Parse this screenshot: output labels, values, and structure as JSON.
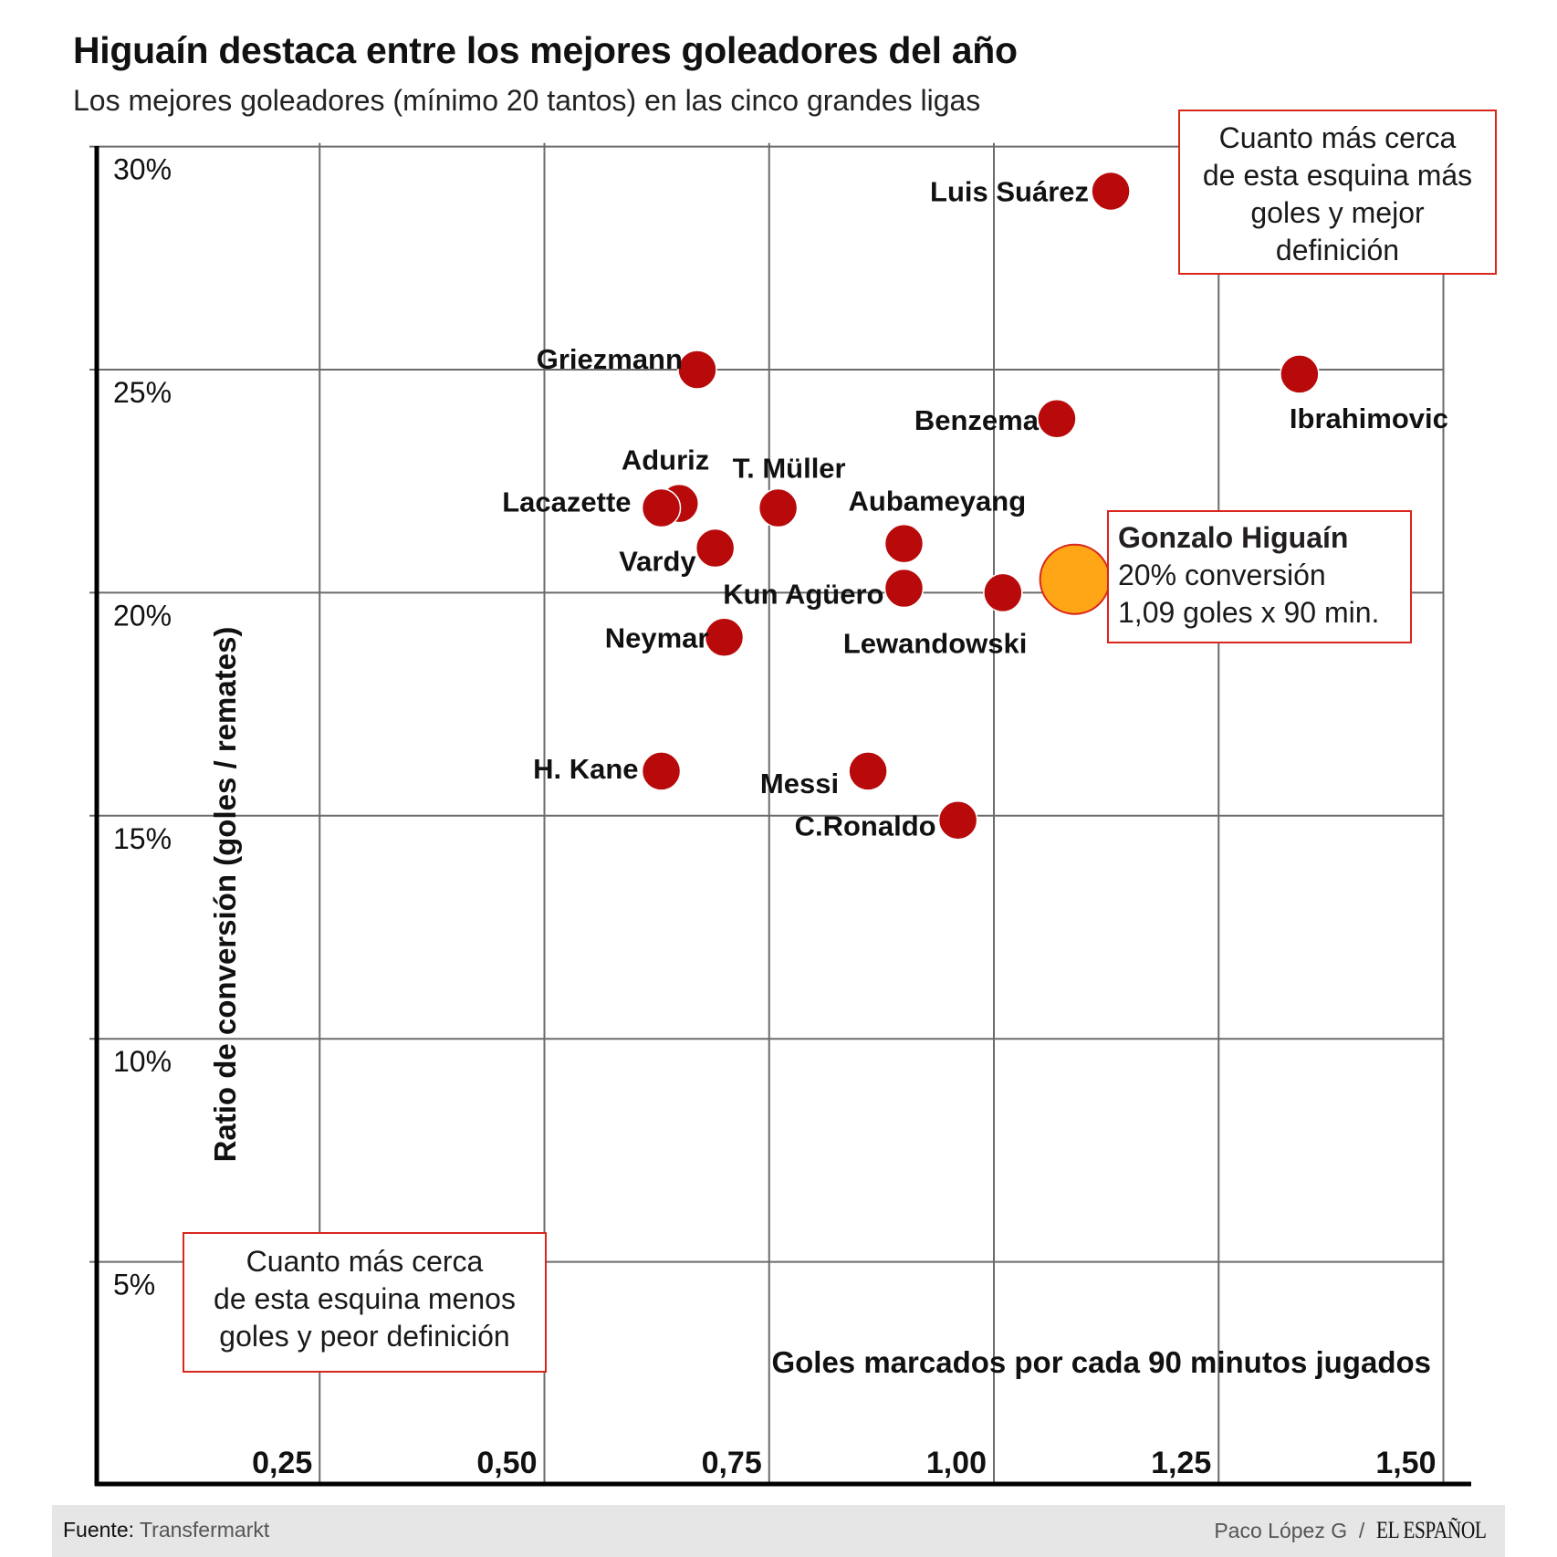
{
  "header": {
    "title": "Higuaín destaca entre los mejores goleadores del año",
    "subtitle": "Los mejores goleadores (mínimo 20 tantos) en las cinco grandes ligas"
  },
  "chart_data": {
    "type": "scatter",
    "title": "Higuaín destaca entre los mejores goleadores del año",
    "subtitle": "Los mejores goleadores (mínimo 20 tantos) en las cinco grandes ligas",
    "xlabel": "Goles marcados por cada 90 minutos jugados",
    "ylabel": "Ratio de conversión (goles  / remates)",
    "xlim": [
      0,
      1.5
    ],
    "ylim": [
      0,
      30
    ],
    "grid": true,
    "xticks": [
      0.25,
      0.5,
      0.75,
      1.0,
      1.25,
      1.5
    ],
    "xtick_labels": [
      "0,25",
      "0,50",
      "0,75",
      "1,00",
      "1,25",
      "1,50"
    ],
    "yticks": [
      5,
      10,
      15,
      20,
      25,
      30
    ],
    "ytick_labels": [
      "5%",
      "10%",
      "15%",
      "20%",
      "25%",
      "30%"
    ],
    "colors": {
      "default": "#b80a0a",
      "highlight": "#fea616",
      "highlight_stroke": "#d8261c"
    },
    "points": [
      {
        "name": "Luis Suárez",
        "x": 1.13,
        "y": 29.0
      },
      {
        "name": "Griezmann",
        "x": 0.67,
        "y": 25.0
      },
      {
        "name": "Ibrahimovic",
        "x": 1.34,
        "y": 24.9
      },
      {
        "name": "Benzema",
        "x": 1.07,
        "y": 23.9
      },
      {
        "name": "Aduriz",
        "x": 0.65,
        "y": 22.0
      },
      {
        "name": "Lacazette",
        "x": 0.63,
        "y": 21.9
      },
      {
        "name": "T. Müller",
        "x": 0.76,
        "y": 21.9
      },
      {
        "name": "Vardy",
        "x": 0.69,
        "y": 21.0
      },
      {
        "name": "Aubameyang",
        "x": 0.9,
        "y": 21.1
      },
      {
        "name": "Kun Agüero",
        "x": 0.9,
        "y": 20.1
      },
      {
        "name": "Lewandowski",
        "x": 1.01,
        "y": 20.0
      },
      {
        "name": "Neymar",
        "x": 0.7,
        "y": 19.0
      },
      {
        "name": "H. Kane",
        "x": 0.63,
        "y": 16.0
      },
      {
        "name": "Messi",
        "x": 0.86,
        "y": 16.0
      },
      {
        "name": "C.Ronaldo",
        "x": 0.96,
        "y": 14.9
      },
      {
        "name": "Gonzalo Higuaín",
        "x": 1.09,
        "y": 20.3,
        "highlight": true
      }
    ],
    "annotations": {
      "top_right": [
        "Cuanto más cerca",
        "de esta esquina más",
        "goles y mejor",
        "definición"
      ],
      "bottom_left": [
        "Cuanto más cerca",
        "de esta esquina menos",
        "goles y peor definición"
      ],
      "highlight": {
        "name": "Gonzalo Higuaín",
        "line1": "20% conversión",
        "line2": "1,09 goles x 90 min."
      }
    }
  },
  "footer": {
    "source_label": "Fuente:",
    "source_value": " Transfermarkt",
    "author": "Paco López G  /  ",
    "brand": "EL ESPAÑOL"
  }
}
